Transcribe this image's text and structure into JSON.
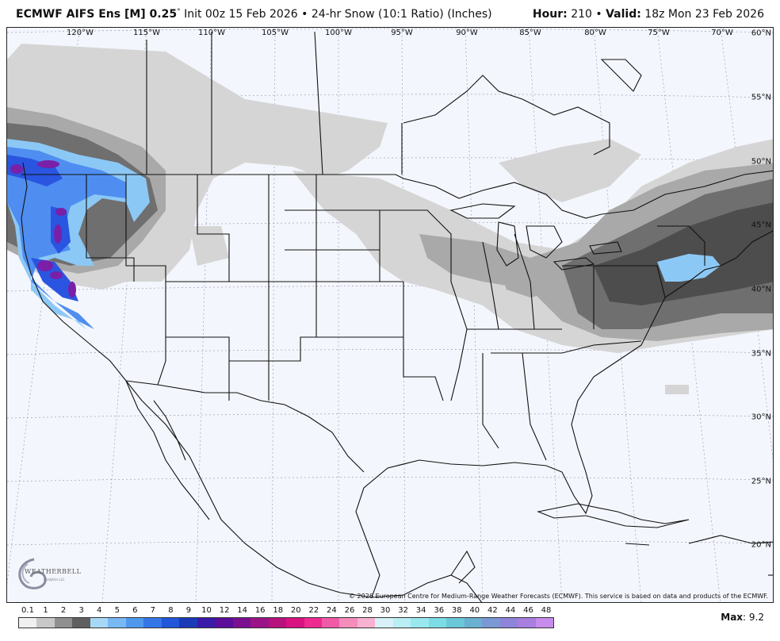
{
  "header": {
    "model": "ECMWF AIFS Ens [M] 0.25",
    "degree_mark": "°",
    "init": "Init 00z 15 Feb 2026",
    "bullet": "•",
    "product": "24-hr Snow (10:1 Ratio) (Inches)",
    "hour_label": "Hour:",
    "hour_value": "210",
    "valid_label": "Valid:",
    "valid_value": "18z Mon 23 Feb 2026"
  },
  "map": {
    "longitudes": [
      "120°W",
      "115°W",
      "110°W",
      "105°W",
      "100°W",
      "95°W",
      "90°W",
      "85°W",
      "80°W",
      "75°W",
      "70°W"
    ],
    "latitudes": [
      "60°N",
      "55°N",
      "50°N",
      "45°N",
      "40°N",
      "35°N",
      "30°N",
      "25°N",
      "20°N"
    ],
    "copyright": "© 2026 European Centre for Medium-Range Weather Forecasts (ECMWF). This service is based on data and products of the ECMWF.",
    "logo_text": "WEATHERBELL",
    "logo_sub": "Analytics LLC",
    "colors": {
      "background": "#f4f6fd",
      "light_gray": "#d5d5d5",
      "mid_gray": "#a9a9a9",
      "dark_gray": "#6f6f6f",
      "darker_gray": "#4d4d4d",
      "light_blue": "#8cc8f5",
      "mid_blue": "#4f8ef0",
      "deep_blue": "#2a55e0",
      "purple": "#7a1fa8",
      "border": "#111111"
    }
  },
  "legend": {
    "ticks": [
      "0.1",
      "1",
      "2",
      "3",
      "4",
      "5",
      "6",
      "7",
      "8",
      "9",
      "10",
      "12",
      "14",
      "16",
      "18",
      "20",
      "22",
      "24",
      "26",
      "28",
      "30",
      "32",
      "34",
      "36",
      "38",
      "40",
      "42",
      "44",
      "46",
      "48"
    ],
    "colors": [
      "#f0f0f0",
      "#c8c8c8",
      "#909090",
      "#606060",
      "#a8d8f8",
      "#78b8f4",
      "#4e98ee",
      "#3576e6",
      "#2356d8",
      "#1a3ab8",
      "#3a1aa8",
      "#5a0e9a",
      "#7a1090",
      "#9a1488",
      "#b8127e",
      "#d81280",
      "#ee2a90",
      "#f05aa6",
      "#f48cbc",
      "#f6b2d0",
      "#d8f0f8",
      "#b8eef4",
      "#98e8ee",
      "#7cdce6",
      "#6ac8d8",
      "#6ab0d0",
      "#7a98d4",
      "#8e84da",
      "#a87ee0",
      "#c88cec"
    ],
    "max_label": "Max",
    "max_sep": ":",
    "max_value": "9.2"
  }
}
